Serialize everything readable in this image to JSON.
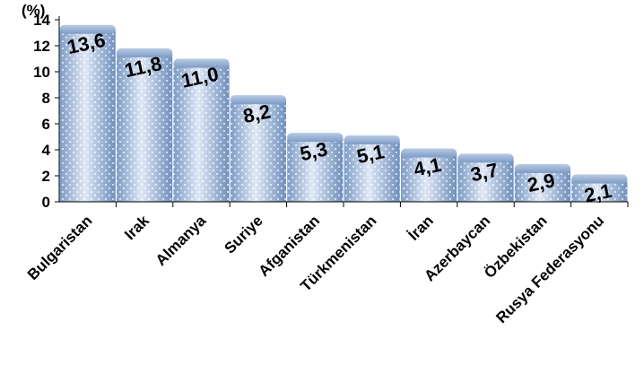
{
  "chart_data": {
    "type": "bar",
    "unit_label": "(%)",
    "categories": [
      "Bulgaristan",
      "Irak",
      "Almanya",
      "Suriye",
      "Afganistan",
      "Türkmenistan",
      "İran",
      "Azerbaycan",
      "Özbekistan",
      "Rusya Federasyonu"
    ],
    "values": [
      13.6,
      11.8,
      11.0,
      8.2,
      5.3,
      5.1,
      4.1,
      3.7,
      2.9,
      2.1
    ],
    "value_labels": [
      "13,6",
      "11,8",
      "11,0",
      "8,2",
      "5,3",
      "5,1",
      "4,1",
      "3,7",
      "2,9",
      "2,1"
    ],
    "yticks": [
      "0",
      "2",
      "4",
      "6",
      "8",
      "10",
      "12",
      "14"
    ],
    "ylim": [
      0,
      14
    ],
    "grid": false,
    "legend": "none",
    "colors": {
      "bar_light": "#dde7f4",
      "bar_mid": "#a9c0de",
      "bar_dark": "#6d8dba",
      "dot": "#ffffff",
      "axis": "#000000"
    }
  }
}
